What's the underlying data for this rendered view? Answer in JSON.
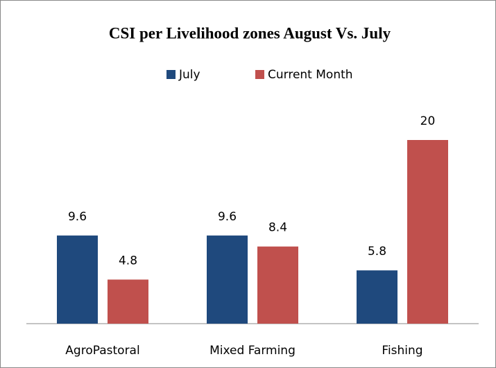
{
  "chart_data": {
    "type": "bar",
    "title": "CSI per Livelihood zones August Vs. July",
    "categories": [
      "AgroPastoral",
      "Mixed Farming",
      "Fishing"
    ],
    "series": [
      {
        "name": "July",
        "color": "#1f497d",
        "values": [
          9.6,
          9.6,
          5.8
        ]
      },
      {
        "name": "Current Month",
        "color": "#c0504d",
        "values": [
          4.8,
          8.4,
          20
        ]
      }
    ],
    "legend": "top"
  }
}
